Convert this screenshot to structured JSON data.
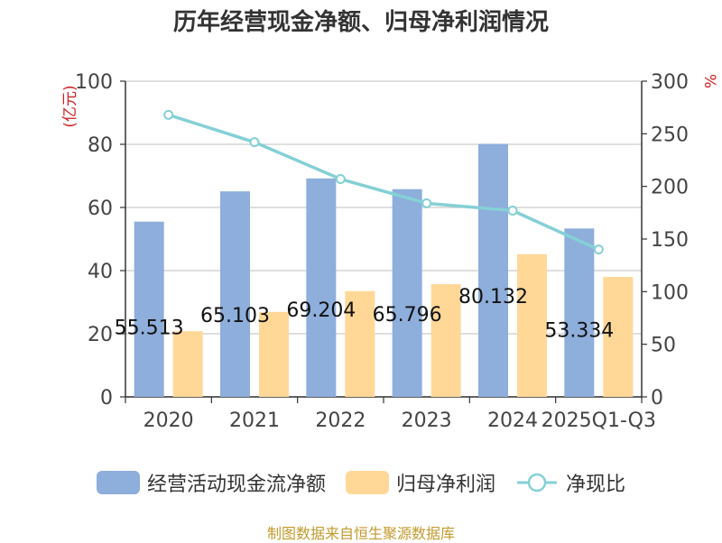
{
  "chart_data": {
    "type": "bar",
    "title": "历年经营现金净额、归母净利润情况",
    "categories": [
      "2020",
      "2021",
      "2022",
      "2023",
      "2024",
      "2025Q1-Q3"
    ],
    "y_left": {
      "label": "(亿元)",
      "ylim": [
        0,
        100
      ],
      "ticks": [
        "0",
        "20",
        "40",
        "60",
        "80",
        "100"
      ]
    },
    "y_right": {
      "label": "%",
      "ylim": [
        0,
        300
      ],
      "ticks": [
        "0",
        "50",
        "100",
        "150",
        "200",
        "250",
        "300"
      ]
    },
    "grid": true,
    "legend_position": "bottom",
    "series": [
      {
        "name": "经营活动现金流净额",
        "type": "bar",
        "axis": "left",
        "color": "#8eaedb",
        "values": [
          55.513,
          65.103,
          69.204,
          65.796,
          80.132,
          53.334
        ],
        "data_labels": [
          "55.513",
          "65.103",
          "69.204",
          "65.796",
          "80.132",
          "53.334"
        ]
      },
      {
        "name": "归母净利润",
        "type": "bar",
        "axis": "left",
        "color": "#ffd898",
        "values": [
          20.8,
          26.9,
          33.5,
          35.7,
          45.2,
          38.0
        ]
      },
      {
        "name": "净现比",
        "type": "line",
        "axis": "right",
        "color": "#84d0d6",
        "values": [
          268,
          242,
          207,
          184,
          177,
          140
        ]
      }
    ]
  },
  "source": "制图数据来自恒生聚源数据库"
}
